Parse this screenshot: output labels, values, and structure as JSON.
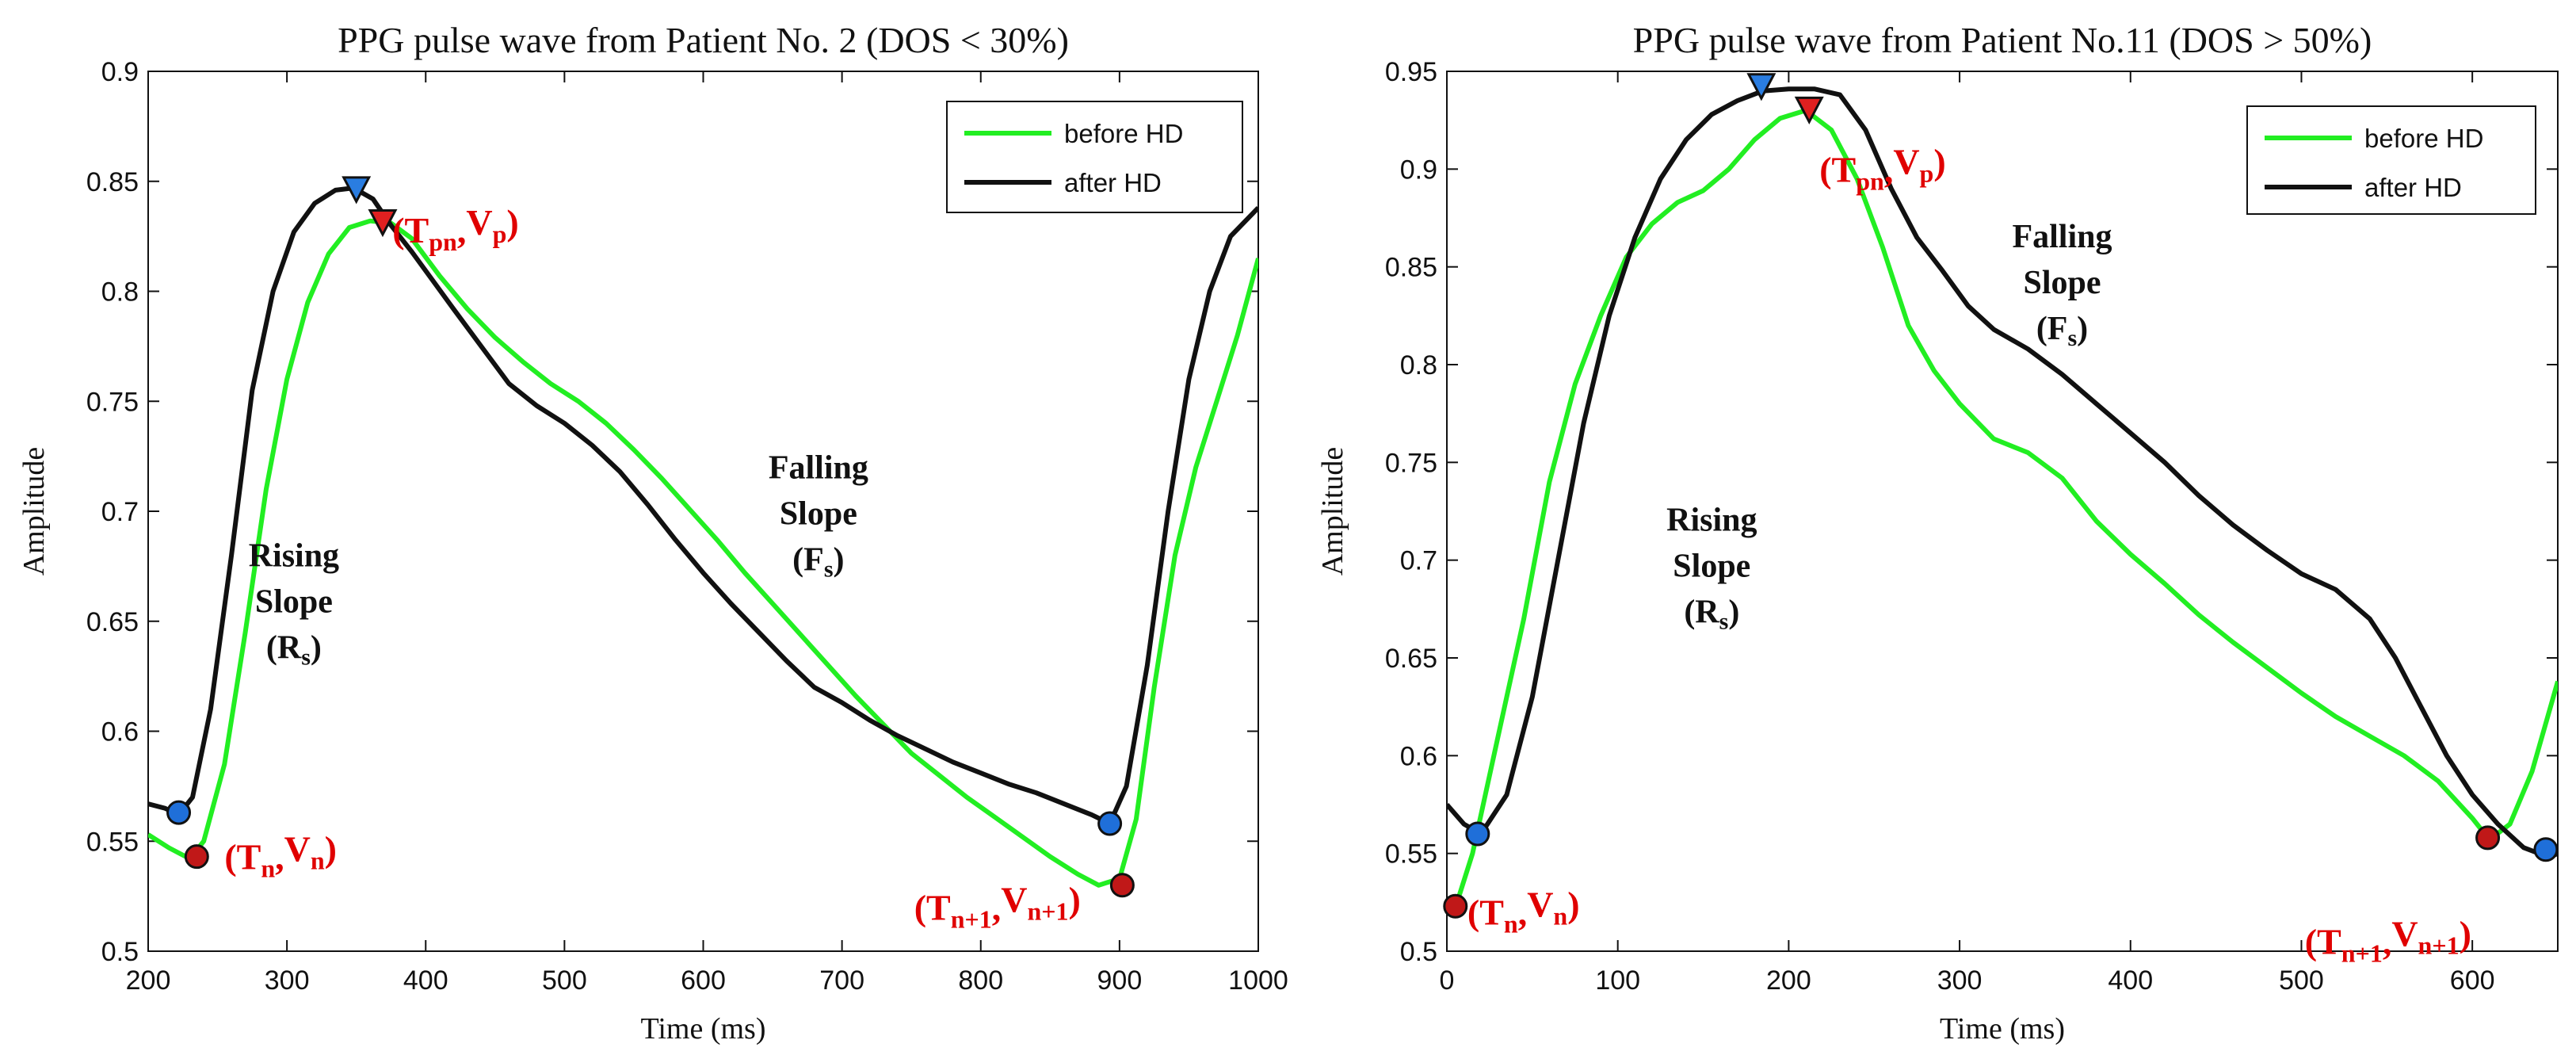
{
  "colors": {
    "before": "#22ee22",
    "after": "#111111",
    "onset_marker": "#1f6fd9",
    "end_marker": "#c01818",
    "peak_after": "#2a7de1",
    "peak_before": "#e02020",
    "annotation": "#e00000"
  },
  "marker_shapes": {
    "onset": "circle",
    "peak": "triangle-down"
  },
  "chart_data": [
    {
      "type": "line",
      "title": "PPG pulse wave from Patient No. 2 (DOS < 30%)",
      "xlabel": "Time (ms)",
      "ylabel": "Amplitude",
      "xlim": [
        200,
        1000
      ],
      "ylim": [
        0.5,
        0.9
      ],
      "x_ticks": [
        200,
        300,
        400,
        500,
        600,
        700,
        800,
        900,
        1000
      ],
      "y_ticks": [
        0.5,
        0.55,
        0.6,
        0.65,
        0.7,
        0.75,
        0.8,
        0.85,
        0.9
      ],
      "x_tick_labels": [
        "200",
        "300",
        "400",
        "500",
        "600",
        "700",
        "800",
        "900",
        "1000"
      ],
      "y_tick_labels": [
        "0.5",
        "0.55",
        "0.6",
        "0.65",
        "0.7",
        "0.75",
        "0.8",
        "0.85",
        "0.9"
      ],
      "grid": false,
      "legend_position": "top-right",
      "series": [
        {
          "name": "before HD",
          "x": [
            200,
            215,
            230,
            240,
            255,
            270,
            285,
            300,
            315,
            330,
            345,
            360,
            375,
            390,
            410,
            430,
            450,
            470,
            490,
            510,
            530,
            550,
            570,
            590,
            610,
            630,
            650,
            670,
            690,
            710,
            730,
            750,
            770,
            790,
            810,
            830,
            850,
            870,
            885,
            900,
            912,
            925,
            940,
            955,
            970,
            985,
            1000
          ],
          "y": [
            0.553,
            0.547,
            0.542,
            0.55,
            0.585,
            0.645,
            0.71,
            0.76,
            0.795,
            0.817,
            0.829,
            0.832,
            0.831,
            0.824,
            0.807,
            0.792,
            0.779,
            0.768,
            0.758,
            0.75,
            0.74,
            0.728,
            0.715,
            0.701,
            0.687,
            0.672,
            0.658,
            0.644,
            0.63,
            0.616,
            0.603,
            0.59,
            0.58,
            0.57,
            0.561,
            0.552,
            0.543,
            0.535,
            0.53,
            0.533,
            0.56,
            0.62,
            0.68,
            0.72,
            0.75,
            0.78,
            0.815
          ]
        },
        {
          "name": "after HD",
          "x": [
            200,
            212,
            222,
            232,
            245,
            260,
            275,
            290,
            305,
            320,
            335,
            348,
            362,
            375,
            390,
            405,
            420,
            440,
            460,
            480,
            500,
            520,
            540,
            560,
            580,
            600,
            620,
            640,
            660,
            680,
            700,
            720,
            740,
            760,
            780,
            800,
            820,
            840,
            860,
            880,
            893,
            905,
            920,
            935,
            950,
            965,
            980,
            1000
          ],
          "y": [
            0.567,
            0.565,
            0.562,
            0.57,
            0.61,
            0.68,
            0.755,
            0.8,
            0.827,
            0.84,
            0.846,
            0.847,
            0.842,
            0.83,
            0.818,
            0.805,
            0.792,
            0.775,
            0.758,
            0.748,
            0.74,
            0.73,
            0.718,
            0.703,
            0.687,
            0.672,
            0.658,
            0.645,
            0.632,
            0.62,
            0.613,
            0.605,
            0.598,
            0.592,
            0.586,
            0.581,
            0.576,
            0.572,
            0.567,
            0.562,
            0.558,
            0.575,
            0.63,
            0.7,
            0.76,
            0.8,
            0.825,
            0.838
          ]
        }
      ],
      "markers": [
        {
          "shape": "circle",
          "color_key": "onset_marker",
          "x": 222,
          "y": 0.563
        },
        {
          "shape": "circle",
          "color_key": "end_marker",
          "x": 235,
          "y": 0.543
        },
        {
          "shape": "circle",
          "color_key": "onset_marker",
          "x": 893,
          "y": 0.558
        },
        {
          "shape": "circle",
          "color_key": "end_marker",
          "x": 902,
          "y": 0.53
        },
        {
          "shape": "triangle-down",
          "color_key": "peak_after",
          "x": 350,
          "y": 0.846
        },
        {
          "shape": "triangle-down",
          "color_key": "peak_before",
          "x": 369,
          "y": 0.831
        }
      ],
      "point_labels": [
        {
          "base": "T",
          "sub": "pn",
          "base2": "V",
          "sub2": "p",
          "x": 376,
          "y": 0.828
        },
        {
          "base": "T",
          "sub": "n",
          "base2": "V",
          "sub2": "n",
          "x": 255,
          "y": 0.543
        },
        {
          "base": "T",
          "sub": "n+1",
          "base2": "V",
          "sub2": "n+1",
          "x": 752,
          "y": 0.52
        }
      ],
      "slope_labels": [
        {
          "lines": [
            "Rising",
            "Slope"
          ],
          "sub_line": {
            "base": "(R",
            "sub": "s",
            "tail": ")"
          },
          "x": 305,
          "y": 0.675
        },
        {
          "lines": [
            "Falling",
            "Slope"
          ],
          "sub_line": {
            "base": "(F",
            "sub": "s",
            "tail": ")"
          },
          "x": 683,
          "y": 0.715
        }
      ]
    },
    {
      "type": "line",
      "title": "PPG pulse wave from Patient No.11 (DOS > 50%)",
      "xlabel": "Time (ms)",
      "ylabel": "Amplitude",
      "xlim": [
        0,
        650
      ],
      "ylim": [
        0.5,
        0.95
      ],
      "x_ticks": [
        0,
        100,
        200,
        300,
        400,
        500,
        600
      ],
      "y_ticks": [
        0.5,
        0.55,
        0.6,
        0.65,
        0.7,
        0.75,
        0.8,
        0.85,
        0.9,
        0.95
      ],
      "x_tick_labels": [
        "0",
        "100",
        "200",
        "300",
        "400",
        "500",
        "600"
      ],
      "y_tick_labels": [
        "0.5",
        "0.55",
        "0.6",
        "0.65",
        "0.7",
        "0.75",
        "0.8",
        "0.85",
        "0.9",
        "0.95"
      ],
      "grid": false,
      "legend_position": "top-right",
      "series": [
        {
          "name": "before HD",
          "x": [
            0,
            6,
            15,
            30,
            45,
            60,
            75,
            90,
            105,
            120,
            135,
            150,
            165,
            180,
            195,
            210,
            225,
            240,
            255,
            270,
            285,
            300,
            320,
            340,
            360,
            380,
            400,
            420,
            440,
            460,
            480,
            500,
            520,
            540,
            560,
            580,
            600,
            610,
            622,
            635,
            650
          ],
          "y": [
            0.522,
            0.525,
            0.55,
            0.61,
            0.67,
            0.74,
            0.79,
            0.825,
            0.855,
            0.872,
            0.883,
            0.889,
            0.9,
            0.915,
            0.926,
            0.93,
            0.92,
            0.895,
            0.86,
            0.82,
            0.797,
            0.78,
            0.762,
            0.755,
            0.742,
            0.72,
            0.703,
            0.688,
            0.672,
            0.658,
            0.645,
            0.632,
            0.62,
            0.61,
            0.6,
            0.587,
            0.568,
            0.557,
            0.565,
            0.592,
            0.638
          ]
        },
        {
          "name": "after HD",
          "x": [
            0,
            10,
            20,
            35,
            50,
            65,
            80,
            95,
            110,
            125,
            140,
            155,
            170,
            185,
            200,
            215,
            230,
            245,
            260,
            275,
            290,
            305,
            320,
            340,
            360,
            380,
            400,
            420,
            440,
            460,
            480,
            500,
            520,
            540,
            555,
            570,
            585,
            600,
            615,
            630,
            645,
            650
          ],
          "y": [
            0.575,
            0.565,
            0.56,
            0.58,
            0.63,
            0.7,
            0.77,
            0.825,
            0.865,
            0.895,
            0.915,
            0.928,
            0.935,
            0.94,
            0.941,
            0.941,
            0.938,
            0.92,
            0.89,
            0.865,
            0.848,
            0.83,
            0.818,
            0.808,
            0.795,
            0.78,
            0.765,
            0.75,
            0.733,
            0.718,
            0.705,
            0.693,
            0.685,
            0.67,
            0.65,
            0.625,
            0.6,
            0.58,
            0.565,
            0.553,
            0.548,
            0.55
          ]
        }
      ],
      "markers": [
        {
          "shape": "circle",
          "color_key": "onset_marker",
          "x": 18,
          "y": 0.56
        },
        {
          "shape": "circle",
          "color_key": "end_marker",
          "x": 5,
          "y": 0.523
        },
        {
          "shape": "circle",
          "color_key": "onset_marker",
          "x": 643,
          "y": 0.552
        },
        {
          "shape": "circle",
          "color_key": "end_marker",
          "x": 609,
          "y": 0.558
        },
        {
          "shape": "triangle-down",
          "color_key": "peak_after",
          "x": 184,
          "y": 0.942
        },
        {
          "shape": "triangle-down",
          "color_key": "peak_before",
          "x": 212,
          "y": 0.93
        }
      ],
      "point_labels": [
        {
          "base": "T",
          "sub": "pn",
          "base2": "V",
          "sub2": "p",
          "x": 218,
          "y": 0.9
        },
        {
          "base": "T",
          "sub": "n",
          "base2": "V",
          "sub2": "n",
          "x": 12,
          "y": 0.52
        },
        {
          "base": "T",
          "sub": "n+1",
          "base2": "V",
          "sub2": "n+1",
          "x": 502,
          "y": 0.505
        }
      ],
      "slope_labels": [
        {
          "lines": [
            "Rising",
            "Slope"
          ],
          "sub_line": {
            "base": "(R",
            "sub": "s",
            "tail": ")"
          },
          "x": 155,
          "y": 0.715
        },
        {
          "lines": [
            "Falling",
            "Slope"
          ],
          "sub_line": {
            "base": "(F",
            "sub": "s",
            "tail": ")"
          },
          "x": 360,
          "y": 0.86
        }
      ]
    }
  ]
}
